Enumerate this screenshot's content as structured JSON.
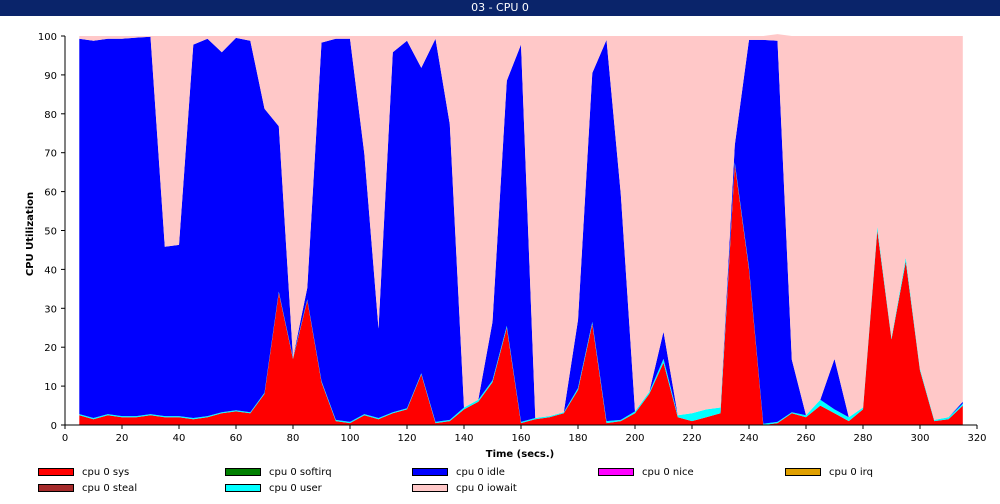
{
  "window": {
    "title": "03 - CPU 0"
  },
  "chart_data": {
    "type": "area",
    "stacked": true,
    "title": "",
    "xlabel": "Time (secs.)",
    "ylabel": "CPU Utilization",
    "xlim": [
      0,
      320
    ],
    "ylim": [
      0,
      100
    ],
    "xticks": [
      0,
      20,
      40,
      60,
      80,
      100,
      120,
      140,
      160,
      180,
      200,
      220,
      240,
      260,
      280,
      300,
      320
    ],
    "yticks": [
      0,
      10,
      20,
      30,
      40,
      50,
      60,
      70,
      80,
      90,
      100
    ],
    "grid": false,
    "legend_position": "bottom",
    "x": [
      5,
      10,
      15,
      20,
      25,
      30,
      35,
      40,
      45,
      50,
      55,
      60,
      65,
      70,
      75,
      80,
      85,
      90,
      95,
      100,
      105,
      110,
      115,
      120,
      125,
      130,
      135,
      140,
      145,
      150,
      155,
      160,
      165,
      170,
      175,
      180,
      185,
      190,
      195,
      200,
      205,
      210,
      215,
      220,
      225,
      230,
      235,
      240,
      245,
      250,
      255,
      260,
      265,
      270,
      275,
      280,
      285,
      290,
      295,
      300,
      305,
      310,
      315
    ],
    "series": [
      {
        "name": "cpu 0 sys",
        "color": "#ff0000",
        "values": [
          2.5,
          1.5,
          2.5,
          2,
          2,
          2.5,
          2,
          2,
          1.5,
          2,
          3,
          3.5,
          3,
          8,
          34,
          17,
          32,
          11,
          1,
          0.5,
          2.5,
          1.5,
          3,
          4,
          13,
          0.5,
          1,
          4,
          6,
          11,
          25,
          0.5,
          1.5,
          2,
          3,
          9,
          26,
          0.5,
          1,
          3,
          8,
          16,
          2,
          1,
          2,
          3,
          67,
          40,
          0,
          0.5,
          3,
          2,
          5,
          3,
          1,
          4,
          50,
          22,
          42,
          14,
          1,
          1.5,
          5
        ]
      },
      {
        "name": "cpu 0 softirq",
        "color": "#008000",
        "values": [
          0,
          0,
          0,
          0,
          0,
          0,
          0,
          0,
          0,
          0,
          0,
          0,
          0,
          0,
          0,
          0,
          0,
          0,
          0,
          0,
          0,
          0,
          0,
          0,
          0,
          0,
          0,
          0,
          0,
          0,
          0,
          0,
          0,
          0,
          0,
          0,
          0,
          0,
          0,
          0,
          0,
          0,
          0,
          0,
          0,
          0,
          0,
          0,
          0,
          0,
          0,
          0,
          0,
          0,
          0,
          0,
          0,
          0,
          0,
          0,
          0,
          0,
          0
        ]
      },
      {
        "name": "cpu 0 user",
        "color": "#00ffff",
        "values": [
          0.3,
          0.3,
          0.3,
          0.3,
          0.3,
          0.3,
          0.3,
          0.3,
          0.3,
          0.3,
          0.3,
          0.3,
          0.3,
          0.3,
          0.3,
          0.3,
          0.3,
          0.3,
          0.3,
          0.3,
          0.3,
          0.3,
          0.3,
          0.3,
          0.3,
          0.3,
          0.3,
          0.5,
          0.5,
          0.5,
          0.5,
          0.3,
          0.3,
          0.3,
          0.3,
          0.5,
          0.5,
          0.5,
          0.3,
          0.5,
          0.5,
          1,
          0.5,
          2,
          2,
          1.5,
          0.5,
          0.5,
          0.3,
          0.3,
          0.3,
          0.5,
          1.5,
          1,
          1,
          0.5,
          1,
          0.5,
          1,
          0.5,
          0.3,
          0.5,
          0.5
        ]
      },
      {
        "name": "cpu 0 idle",
        "color": "#0000ff",
        "values": [
          96.5,
          97,
          96.5,
          97,
          97.3,
          97,
          43.5,
          44,
          96,
          97,
          92.5,
          95.7,
          95.5,
          73,
          42.5,
          0,
          3,
          87,
          98,
          98.5,
          67,
          23,
          92.5,
          94.5,
          78.5,
          98.5,
          76,
          0,
          0,
          15,
          63,
          97,
          0,
          0,
          0,
          17.5,
          64,
          98,
          58,
          0,
          0,
          7,
          0,
          0,
          0,
          0,
          4.5,
          58.5,
          98.7,
          98,
          13.5,
          0,
          0,
          13,
          0,
          0,
          0,
          0,
          0,
          0,
          0,
          0,
          0.5
        ]
      },
      {
        "name": "cpu 0 nice",
        "color": "#ff00ff",
        "values": [
          0,
          0,
          0,
          0,
          0,
          0,
          0,
          0,
          0,
          0,
          0,
          0,
          0,
          0,
          0,
          0,
          0,
          0,
          0,
          0,
          0,
          0,
          0,
          0,
          0,
          0,
          0,
          0,
          0,
          0,
          0,
          0,
          0,
          0,
          0,
          0,
          0,
          0,
          0,
          0,
          0,
          0,
          0,
          0,
          0,
          0,
          0,
          0,
          0,
          0,
          0,
          0,
          0,
          0,
          0,
          0,
          0,
          0,
          0,
          0,
          0,
          0,
          0
        ]
      },
      {
        "name": "cpu 0 irq",
        "color": "#e0a000",
        "values": [
          0,
          0,
          0,
          0,
          0,
          0,
          0,
          0,
          0,
          0,
          0,
          0,
          0,
          0,
          0,
          0,
          0,
          0,
          0,
          0,
          0,
          0,
          0,
          0,
          0,
          0,
          0,
          0,
          0,
          0,
          0,
          0,
          0,
          0,
          0,
          0,
          0,
          0,
          0,
          0,
          0,
          0,
          0,
          0,
          0,
          0,
          0,
          0,
          0,
          0,
          0,
          0,
          0,
          0,
          0,
          0,
          0,
          0,
          0,
          0,
          0,
          0,
          0
        ]
      },
      {
        "name": "cpu 0 steal",
        "color": "#a52a2a",
        "values": [
          0,
          0,
          0,
          0,
          0,
          0,
          0,
          0,
          0,
          0,
          0,
          0,
          0,
          0,
          0,
          0,
          0,
          0,
          0,
          0,
          0,
          0,
          0,
          0,
          0,
          0,
          0,
          0,
          0,
          0,
          0,
          0,
          0,
          0,
          0,
          0,
          0,
          0,
          0,
          0,
          0,
          0,
          0,
          0,
          0,
          0,
          0,
          0,
          0,
          0,
          0,
          0,
          0,
          0,
          0,
          0,
          0,
          0,
          0,
          0,
          0,
          0,
          0
        ]
      },
      {
        "name": "cpu 0 iowait",
        "color": "#ffc8c8",
        "values": [
          0.7,
          1.2,
          0.7,
          0.7,
          0.4,
          0.2,
          54.2,
          53.7,
          2.2,
          0.7,
          4.2,
          0.5,
          1.2,
          18.7,
          23.2,
          82.7,
          64.7,
          1.7,
          0.7,
          0.7,
          30.2,
          75.2,
          4.2,
          1.2,
          8.2,
          0.7,
          22.7,
          95.5,
          93.5,
          73.5,
          11.5,
          2.2,
          98.2,
          97.7,
          96.7,
          73,
          9.5,
          1,
          40.7,
          96.5,
          91.5,
          76,
          97.5,
          97,
          96,
          95.5,
          28,
          1,
          1,
          1.7,
          83.2,
          97.5,
          93.5,
          83,
          98,
          95.5,
          49,
          77.5,
          57,
          85.5,
          98.7,
          98,
          94
        ]
      }
    ]
  },
  "legend": [
    {
      "label": "cpu 0 sys",
      "color": "#ff0000"
    },
    {
      "label": "cpu 0 softirq",
      "color": "#008000"
    },
    {
      "label": "cpu 0 idle",
      "color": "#0000ff"
    },
    {
      "label": "cpu 0 nice",
      "color": "#ff00ff"
    },
    {
      "label": "cpu 0 irq",
      "color": "#e0a000"
    },
    {
      "label": "cpu 0 steal",
      "color": "#a52a2a"
    },
    {
      "label": "cpu 0 user",
      "color": "#00ffff"
    },
    {
      "label": "cpu 0 iowait",
      "color": "#ffc8c8"
    }
  ]
}
